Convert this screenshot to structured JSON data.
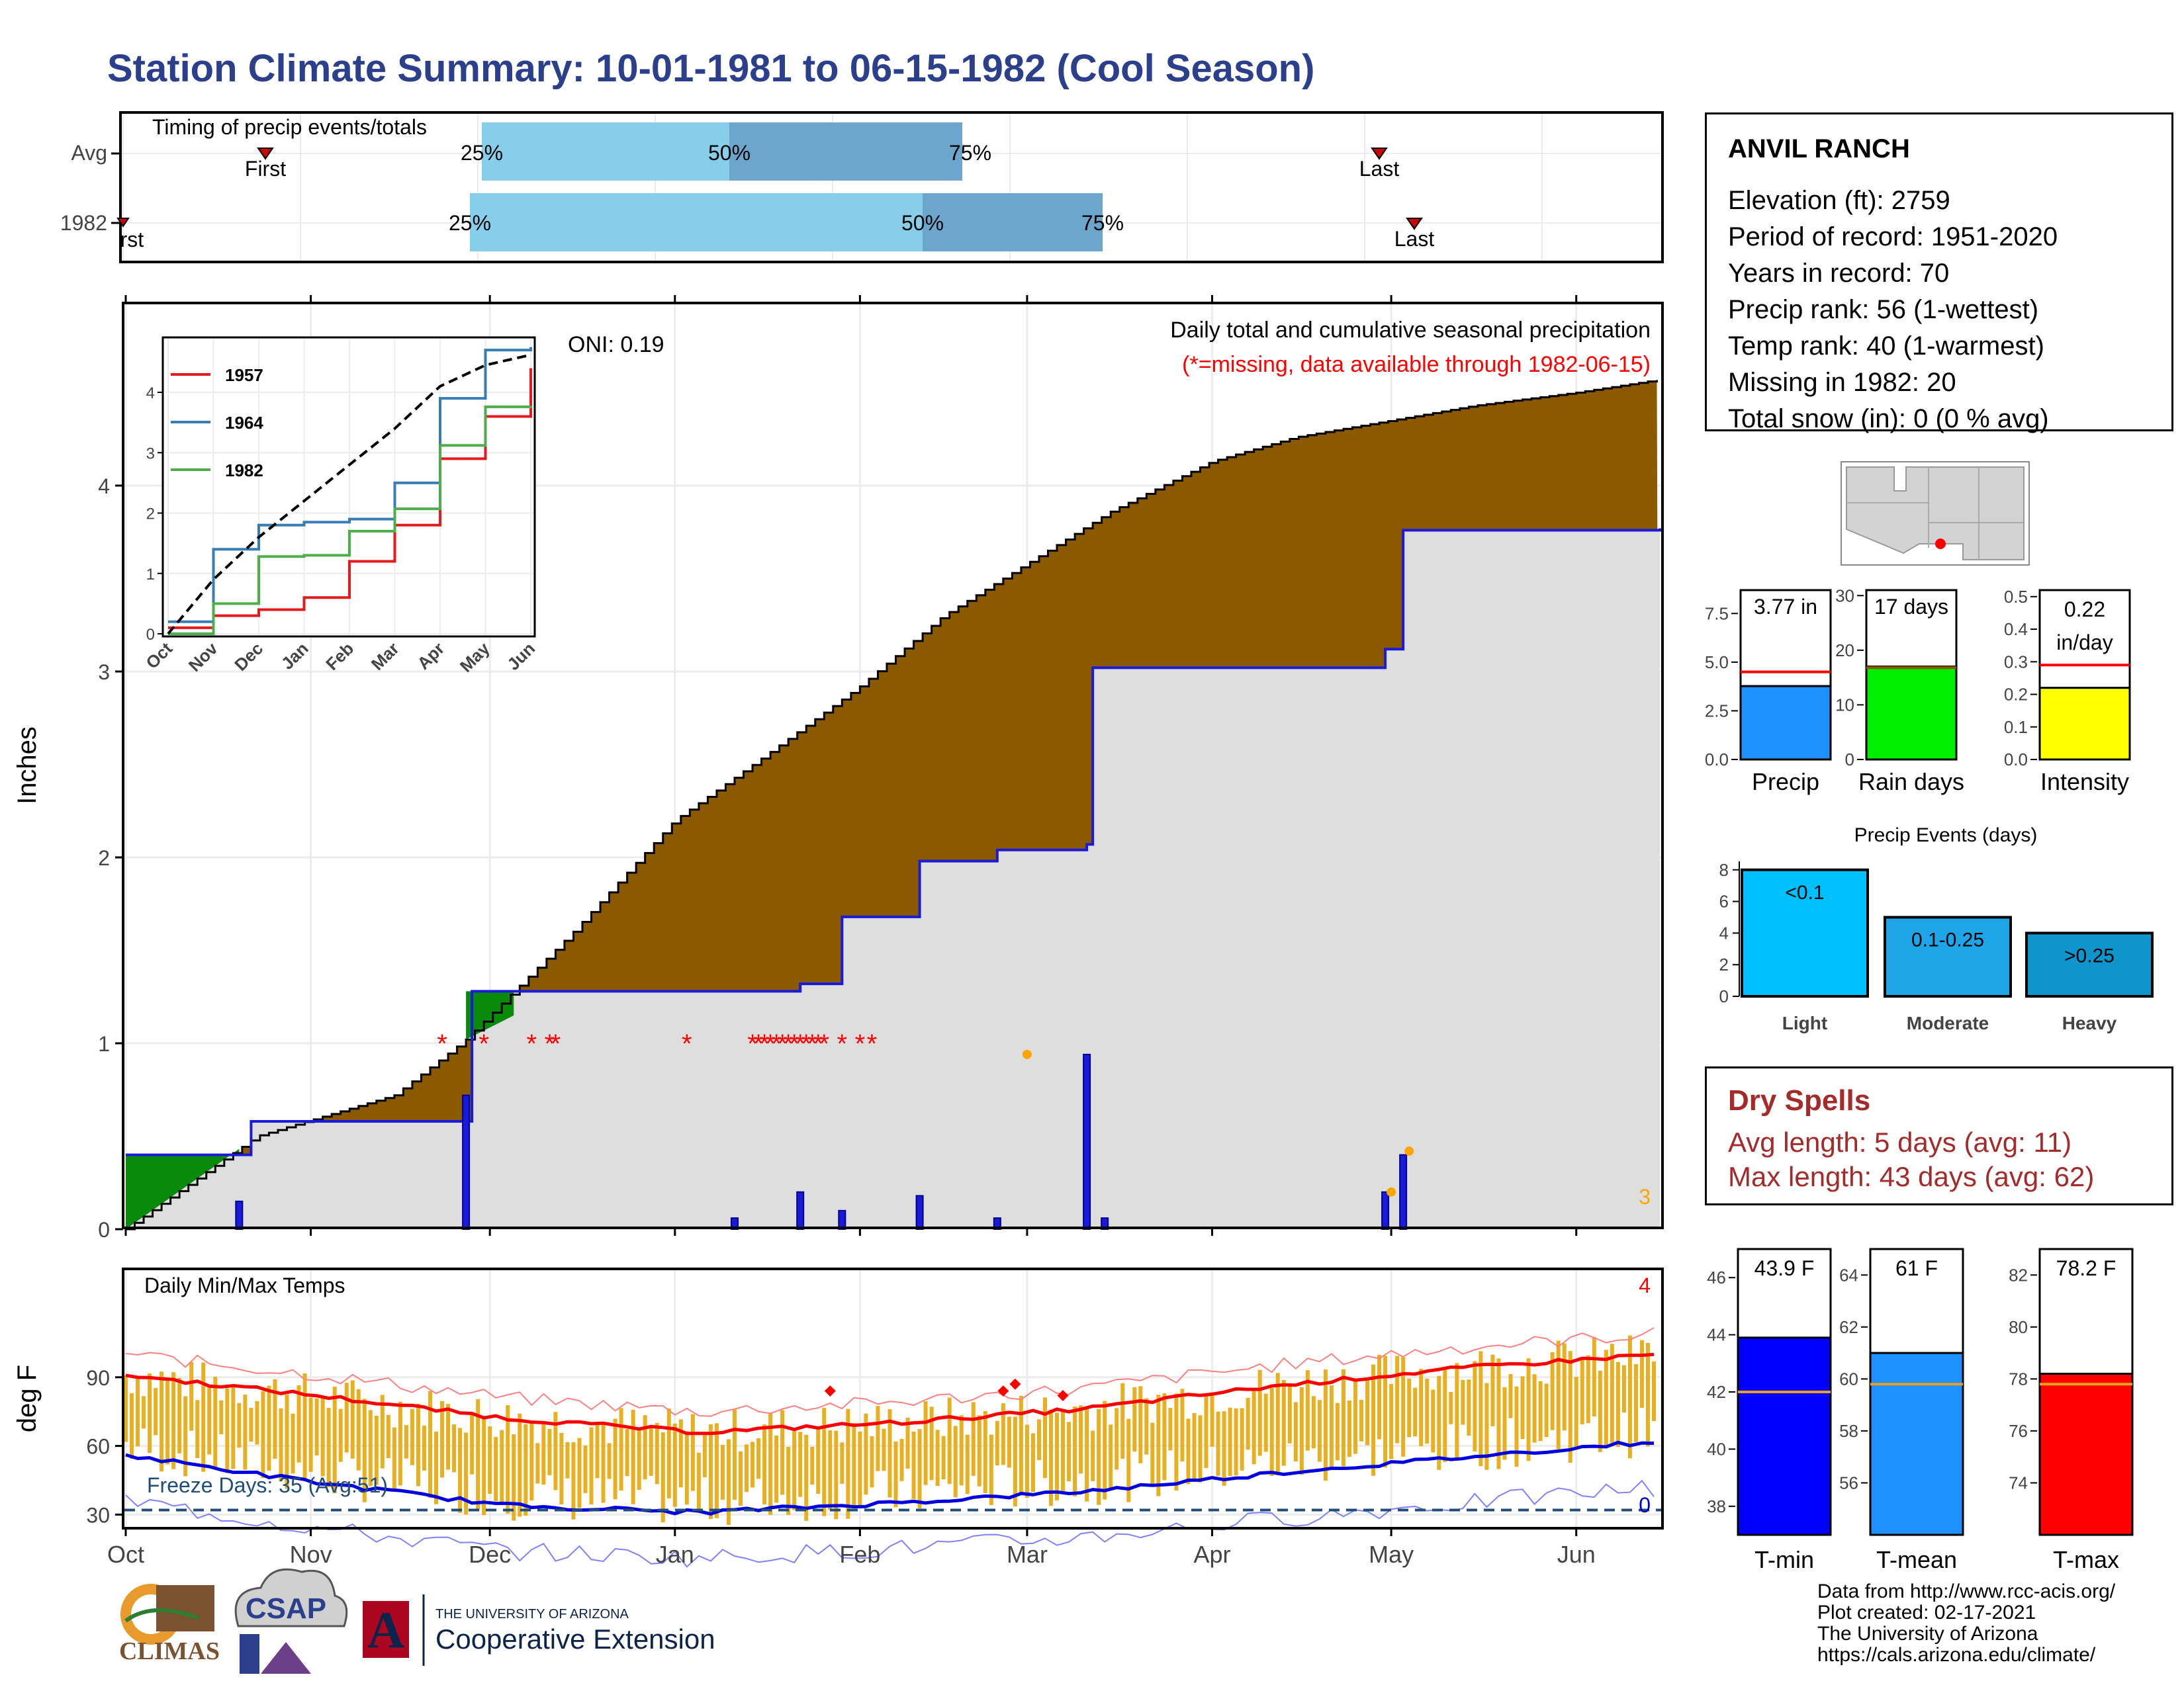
{
  "title": "Station Climate Summary: 10-01-1981 to 06-15-1982 (Cool Season)",
  "colors": {
    "title": "#2b3f8c",
    "precip_fill": "#8b5a00",
    "avg_fill": "#dedede",
    "avg_line": "#1a1adb",
    "green": "#0a8a0a",
    "tmax": "#ff0000",
    "tmin": "#0000e0",
    "bars": "#e8b020",
    "light": "#00bfff",
    "moderate": "#1ea5e8",
    "heavy": "#0e95cc"
  },
  "timing": {
    "title": "Timing of precip events/totals",
    "rows": [
      {
        "label": "Avg",
        "first": "First",
        "last": "Last",
        "p25": "25%",
        "p50": "50%",
        "p75": "75%"
      },
      {
        "label": "1982",
        "first": "First",
        "last": "Last",
        "p25": "25%",
        "p50": "50%",
        "p75": "75%"
      }
    ]
  },
  "station": {
    "name": "ANVIL RANCH",
    "lines": [
      "Elevation (ft): 2759",
      "Period of record: 1951-2020",
      "Years in record: 70",
      "Precip rank: 56 (1-wettest)",
      "Temp rank: 40 (1-warmest)",
      "Missing in 1982: 20",
      "Total snow (in): 0 (0 % avg)"
    ]
  },
  "main_plot": {
    "ylabel": "Inches",
    "title": "Daily total and cumulative seasonal precipitation",
    "subtitle": "(*=missing, data available through 1982-06-15)",
    "oni": "ONI: 0.19",
    "corner_count": "3",
    "months": [
      "Oct",
      "Nov",
      "Dec",
      "Jan",
      "Feb",
      "Mar",
      "Apr",
      "May",
      "Jun"
    ],
    "yticks": [
      "0",
      "1",
      "2",
      "3",
      "4"
    ]
  },
  "inset": {
    "legend": [
      "1957",
      "1964",
      "1982"
    ],
    "months": [
      "Oct",
      "Nov",
      "Dec",
      "Jan",
      "Feb",
      "Mar",
      "Apr",
      "May",
      "Jun"
    ],
    "yticks": [
      "0",
      "1",
      "2",
      "3",
      "4"
    ]
  },
  "temps": {
    "title": "Daily Min/Max Temps",
    "ylabel": "deg F",
    "yticks": [
      "30",
      "60",
      "90"
    ],
    "freeze": "Freeze Days: 35 (Avg:51)",
    "top_count": "4",
    "bottom_count": "0",
    "months": [
      "Oct",
      "Nov",
      "Dec",
      "Jan",
      "Feb",
      "Mar",
      "Apr",
      "May",
      "Jun"
    ]
  },
  "summary_bars": [
    {
      "label": "Precip",
      "value_text": "3.77 in",
      "yticks": [
        "0.0",
        "2.5",
        "5.0",
        "7.5"
      ]
    },
    {
      "label": "Rain days",
      "value_text": "17 days",
      "yticks": [
        "0",
        "10",
        "20",
        "30"
      ]
    },
    {
      "label": "Intensity",
      "value_text_1": "0.22",
      "value_text_2": "in/day",
      "yticks": [
        "0.0",
        "0.1",
        "0.2",
        "0.3",
        "0.4",
        "0.5"
      ]
    }
  ],
  "events": {
    "title": "Precip Events (days)",
    "yticks": [
      "0",
      "2",
      "4",
      "6",
      "8"
    ],
    "bars": [
      {
        "label": "Light",
        "inner": "<0.1"
      },
      {
        "label": "Moderate",
        "inner": "0.1-0.25"
      },
      {
        "label": "Heavy",
        "inner": ">0.25"
      }
    ]
  },
  "dry_spells": {
    "title": "Dry Spells",
    "avg": "Avg length: 5 days (avg: 11)",
    "max": "Max length: 43 days (avg: 62)"
  },
  "temp_bars": [
    {
      "label": "T-min",
      "value_text": "43.9 F",
      "yticks": [
        "38",
        "40",
        "42",
        "44",
        "46"
      ]
    },
    {
      "label": "T-mean",
      "value_text": "61 F",
      "yticks": [
        "56",
        "58",
        "60",
        "62",
        "64"
      ]
    },
    {
      "label": "T-max",
      "value_text": "78.2 F",
      "yticks": [
        "74",
        "76",
        "78",
        "80",
        "82"
      ]
    }
  ],
  "footer": {
    "lines": [
      "Data from http://www.rcc-acis.org/",
      "Plot created: 02-17-2021",
      "The University of Arizona",
      "https://cals.arizona.edu/climate/"
    ],
    "logo_climas": "CLIMAS",
    "logo_csap": "CSAP",
    "ua_top": "THE UNIVERSITY OF ARIZONA",
    "ua_bottom": "Cooperative Extension"
  },
  "chart_data": [
    {
      "type": "area",
      "title": "Daily total and cumulative seasonal precipitation",
      "ylabel": "Inches",
      "ylim": [
        0,
        5
      ],
      "series": [
        {
          "name": "1982",
          "x": [
            "1981-10-01",
            "1981-10-23",
            "1981-11-15",
            "1981-11-27",
            "1981-12-15",
            "1982-01-01",
            "1982-01-15",
            "1982-02-01",
            "1982-02-15",
            "1982-03-01",
            "1982-03-15",
            "1982-04-01",
            "1982-04-15",
            "1982-05-01",
            "1982-05-15",
            "1982-06-01",
            "1982-06-15"
          ],
          "values": [
            0.0,
            0.5,
            0.72,
            1.02,
            1.6,
            2.2,
            2.52,
            2.92,
            3.3,
            3.58,
            3.86,
            4.13,
            4.26,
            4.35,
            4.43,
            4.5,
            4.57
          ]
        },
        {
          "x": [
            "1981-10-01",
            "1981-10-20",
            "1981-10-22",
            "1981-11-27",
            "1981-11-28",
            "1982-01-10",
            "1982-01-22",
            "1982-01-29",
            "1982-02-11",
            "1982-02-24",
            "1982-03-11",
            "1982-03-12",
            "1982-04-30",
            "1982-05-03",
            "1982-06-15"
          ],
          "values": [
            0.4,
            0.4,
            0.58,
            0.58,
            1.28,
            1.28,
            1.32,
            1.68,
            1.98,
            2.04,
            2.07,
            3.02,
            3.12,
            3.76,
            3.77
          ]
        }
      ],
      "daily_precip": {
        "x": [
          "1981-10-20",
          "1981-11-27",
          "1982-01-11",
          "1982-01-22",
          "1982-01-29",
          "1982-02-11",
          "1982-02-24",
          "1982-03-11",
          "1982-03-14",
          "1982-04-30",
          "1982-05-03"
        ],
        "values": [
          0.15,
          0.72,
          0.06,
          0.2,
          0.1,
          0.18,
          0.06,
          0.94,
          0.06,
          0.2,
          0.4
        ]
      }
    },
    {
      "type": "line",
      "title": "",
      "series": [
        {
          "name": "1957",
          "values": [
            0.1,
            0.3,
            0.4,
            0.6,
            1.2,
            1.8,
            2.9,
            3.6,
            4.4
          ]
        },
        {
          "name": "1964",
          "values": [
            0.2,
            1.4,
            1.8,
            1.85,
            1.9,
            2.5,
            3.9,
            4.7,
            4.75
          ]
        },
        {
          "name": "1982",
          "values": [
            0.0,
            0.5,
            1.28,
            1.3,
            1.7,
            2.07,
            3.12,
            3.76,
            3.77
          ]
        }
      ],
      "categories": [
        "Oct",
        "Nov",
        "Dec",
        "Jan",
        "Feb",
        "Mar",
        "Apr",
        "May",
        "Jun"
      ],
      "ylim": [
        0,
        4.8
      ]
    },
    {
      "type": "bar",
      "title": "Daily Min/Max Temps",
      "ylabel": "deg F",
      "ylim": [
        10,
        105
      ],
      "avg_max": [
        91,
        82,
        72,
        66,
        70,
        76,
        86,
        94,
        100
      ],
      "avg_min": [
        56,
        44,
        34,
        31,
        35,
        40,
        48,
        55,
        62
      ],
      "freeze_line": 32
    },
    {
      "type": "bar",
      "categories": [
        "Precip"
      ],
      "values": [
        3.77
      ],
      "avg": 4.5,
      "ylim": [
        0,
        8.7
      ]
    },
    {
      "type": "bar",
      "categories": [
        "Rain days"
      ],
      "values": [
        17
      ],
      "avg": 16.8,
      "ylim": [
        0,
        31
      ]
    },
    {
      "type": "bar",
      "categories": [
        "Intensity"
      ],
      "values": [
        0.22
      ],
      "avg": 0.29,
      "ylim": [
        0,
        0.52
      ]
    },
    {
      "type": "bar",
      "title": "Precip Events (days)",
      "categories": [
        "Light",
        "Moderate",
        "Heavy"
      ],
      "values": [
        8,
        5,
        4
      ],
      "ylim": [
        0,
        8.2
      ]
    },
    {
      "type": "bar",
      "categories": [
        "T-min"
      ],
      "values": [
        43.9
      ],
      "avg": 42,
      "ylim": [
        37,
        47
      ]
    },
    {
      "type": "bar",
      "categories": [
        "T-mean"
      ],
      "values": [
        61
      ],
      "avg": 59.8,
      "ylim": [
        54,
        65
      ]
    },
    {
      "type": "bar",
      "categories": [
        "T-max"
      ],
      "values": [
        78.2
      ],
      "avg": 77.8,
      "ylim": [
        72,
        83
      ]
    }
  ]
}
